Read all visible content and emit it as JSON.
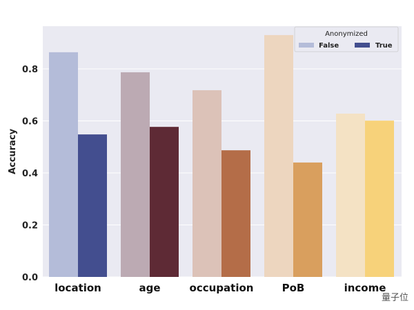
{
  "chart_data": {
    "type": "bar",
    "title": "",
    "xlabel": "",
    "ylabel": "Accuracy",
    "ylim": [
      0,
      0.96
    ],
    "yticks": [
      "0.0",
      "0.2",
      "0.4",
      "0.6",
      "0.8"
    ],
    "grid": true,
    "categories": [
      "location",
      "age",
      "occupation",
      "PoB",
      "income"
    ],
    "legend": {
      "title": "Anonymized",
      "placement": "top-right",
      "entries": [
        "False",
        "True"
      ]
    },
    "series": [
      {
        "name": "False",
        "values": [
          0.864,
          0.787,
          0.718,
          0.93,
          0.628
        ],
        "colors": [
          "#b4bcd9",
          "#bcaab3",
          "#dcc2b8",
          "#edd6bf",
          "#f4e2c4"
        ]
      },
      {
        "name": "True",
        "values": [
          0.548,
          0.577,
          0.487,
          0.44,
          0.601
        ],
        "colors": [
          "#434e8f",
          "#5e2a35",
          "#b46d48",
          "#d99f5e",
          "#f7d27a"
        ]
      }
    ],
    "legend_colors": [
      "#b4bcd9",
      "#434e8f"
    ],
    "background": "#eaeaf2"
  },
  "watermark": "量子位"
}
